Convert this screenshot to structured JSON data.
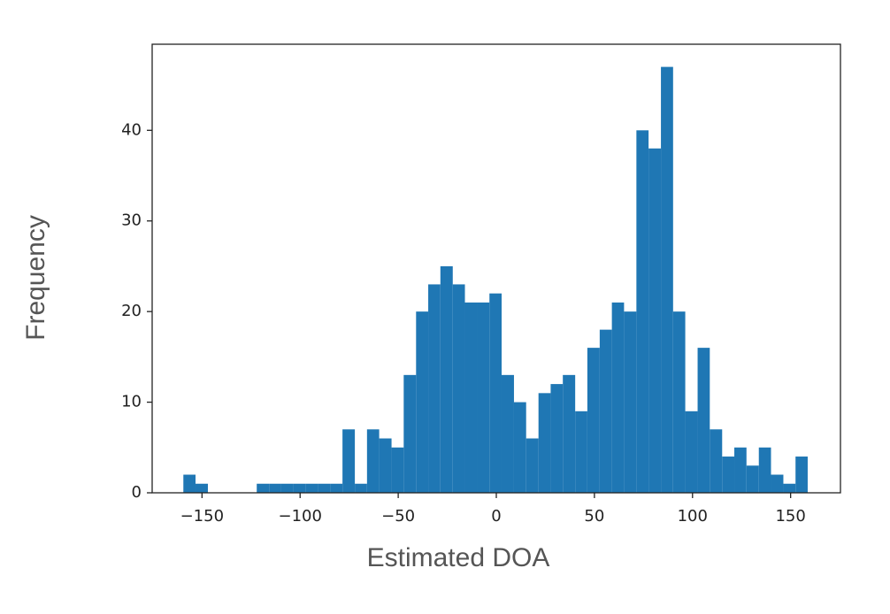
{
  "chart_data": {
    "type": "histogram",
    "xlabel": "Estimated DOA",
    "ylabel": "Frequency",
    "bins": [
      -159.5,
      -153.3,
      -147.0,
      -140.8,
      -134.5,
      -128.3,
      -122.1,
      -115.8,
      -109.6,
      -103.3,
      -97.1,
      -90.9,
      -84.6,
      -78.4,
      -72.1,
      -65.9,
      -59.7,
      -53.4,
      -47.2,
      -40.9,
      -34.7,
      -28.5,
      -22.2,
      -16.0,
      -9.7,
      -3.5,
      2.7,
      9.0,
      15.2,
      21.5,
      27.7,
      33.9,
      40.2,
      46.4,
      52.7,
      58.9,
      65.1,
      71.4,
      77.6,
      83.9,
      90.1,
      96.3,
      102.6,
      108.8,
      115.1,
      121.3,
      127.5,
      133.8,
      140.0,
      146.3,
      152.5,
      158.7
    ],
    "counts": [
      2,
      1,
      0,
      0,
      0,
      0,
      1,
      1,
      1,
      1,
      1,
      1,
      1,
      7,
      1,
      7,
      6,
      5,
      13,
      20,
      23,
      25,
      23,
      21,
      21,
      22,
      13,
      10,
      6,
      11,
      12,
      13,
      9,
      16,
      18,
      21,
      20,
      40,
      38,
      47,
      20,
      9,
      16,
      7,
      4,
      5,
      3,
      5,
      2,
      1,
      4
    ],
    "color": "#1f77b4",
    "xlim": [
      -175.4,
      175.4
    ],
    "xticks": [
      {
        "value": -150,
        "label": "−150"
      },
      {
        "value": -100,
        "label": "−100"
      },
      {
        "value": -50,
        "label": "−50"
      },
      0,
      50,
      100,
      150
    ],
    "ylim": [
      0,
      49.5
    ],
    "yticks": [
      0,
      10,
      20,
      30,
      40
    ]
  }
}
